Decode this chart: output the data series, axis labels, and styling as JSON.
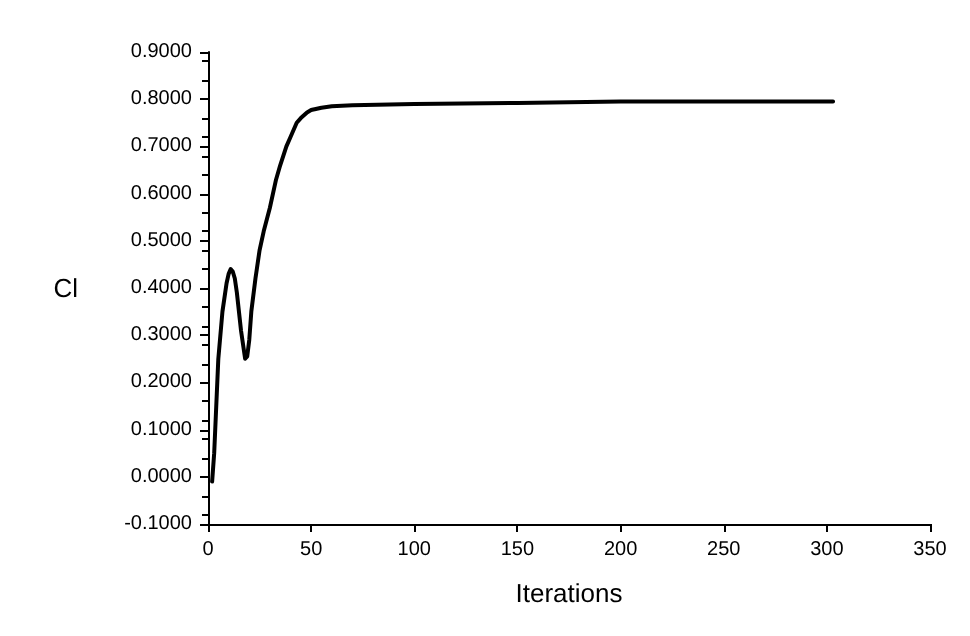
{
  "chart_data": {
    "type": "line",
    "xlabel": "Iterations",
    "ylabel": "Cl",
    "grid": false,
    "marker": "none",
    "line_style": "solid",
    "xlim": [
      0,
      350
    ],
    "xticks": [
      0,
      50,
      100,
      150,
      200,
      250,
      300,
      350
    ],
    "ylim": [
      -0.1,
      0.9
    ],
    "yticks": [
      {
        "value": -0.1,
        "label": "-0.1000"
      },
      {
        "value": 0,
        "label": "0.0000"
      },
      {
        "value": 0.1,
        "label": "0.1000"
      },
      {
        "value": 0.2,
        "label": "0.2000"
      },
      {
        "value": 0.3,
        "label": "0.3000"
      },
      {
        "value": 0.4,
        "label": "0.4000"
      },
      {
        "value": 0.5,
        "label": "0.5000"
      },
      {
        "value": 0.6,
        "label": "0.6000"
      },
      {
        "value": 0.7,
        "label": "0.7000"
      },
      {
        "value": 0.8,
        "label": "0.8000"
      },
      {
        "value": 0.9,
        "label": "0.9000"
      }
    ],
    "series": [
      {
        "color": "#000000",
        "x": [
          2,
          3,
          4,
          5,
          7,
          9,
          10,
          11,
          12,
          13,
          14,
          16,
          18,
          19,
          20,
          21,
          23,
          25,
          27,
          30,
          33,
          35,
          38,
          40,
          43,
          45,
          48,
          50,
          55,
          60,
          70,
          100,
          150,
          200,
          250,
          303
        ],
        "values": [
          -0.01,
          0.05,
          0.15,
          0.25,
          0.35,
          0.41,
          0.43,
          0.44,
          0.435,
          0.42,
          0.39,
          0.31,
          0.25,
          0.255,
          0.29,
          0.35,
          0.42,
          0.48,
          0.52,
          0.57,
          0.63,
          0.66,
          0.7,
          0.72,
          0.75,
          0.76,
          0.772,
          0.777,
          0.782,
          0.785,
          0.787,
          0.79,
          0.792,
          0.795,
          0.795,
          0.795
        ]
      }
    ]
  }
}
